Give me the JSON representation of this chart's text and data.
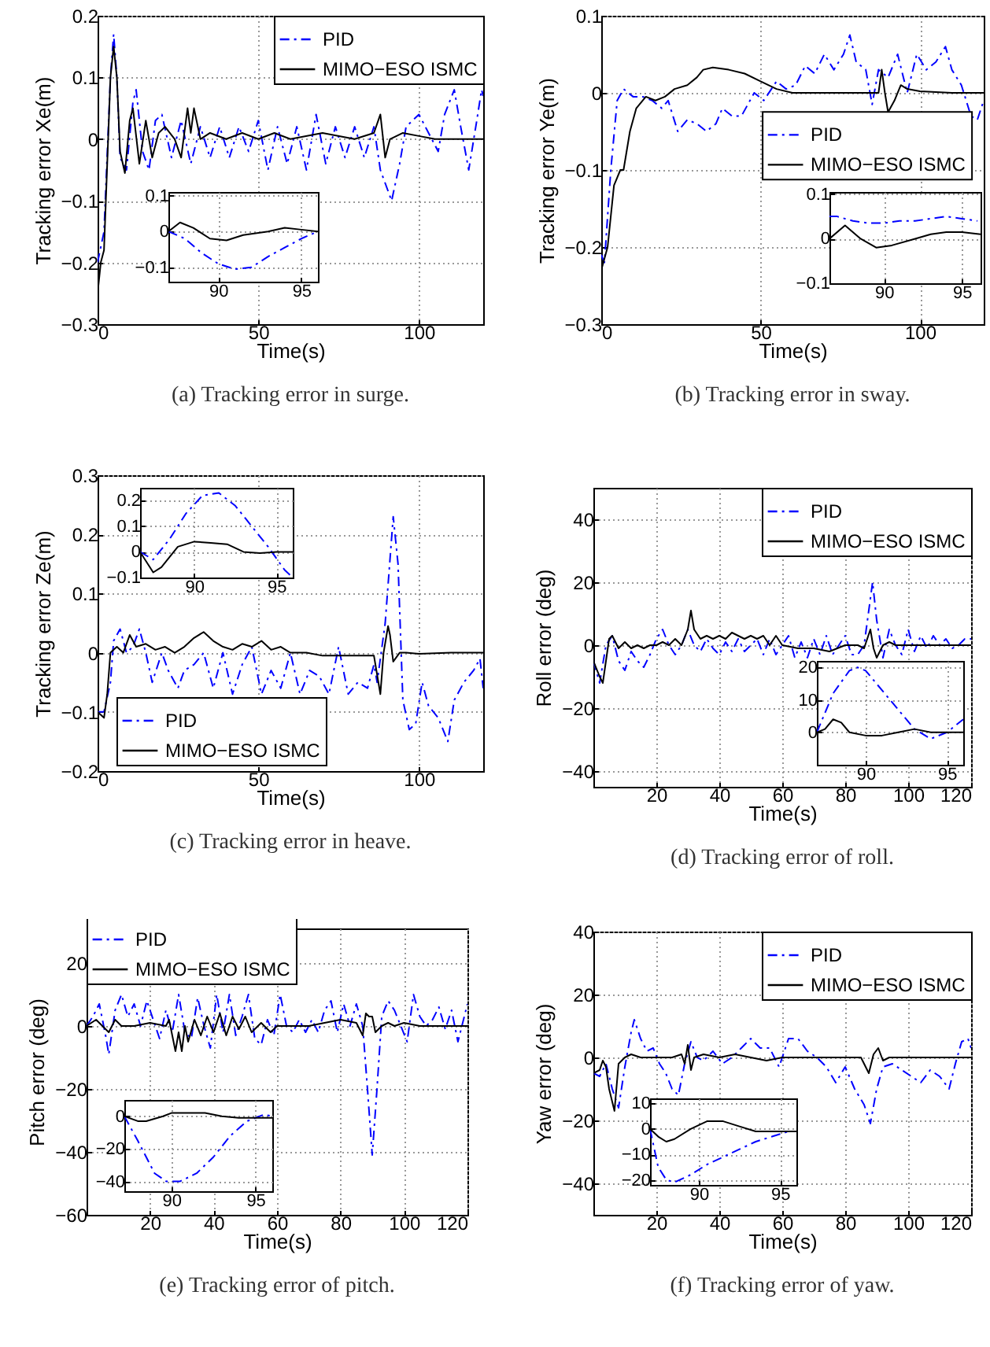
{
  "chart_data": [
    {
      "type": "line",
      "title": "(a) Tracking error in surge.",
      "xlabel": "Time(s)",
      "ylabel": "Tracking error  Xe(m)",
      "xlim": [
        0,
        120
      ],
      "ylim": [
        -0.3,
        0.2
      ],
      "xticks": [
        0,
        50,
        100
      ],
      "yticks": [
        -0.3,
        -0.2,
        -0.1,
        0,
        0.1,
        0.2
      ],
      "grid": true,
      "legend": "top right",
      "series": [
        {
          "name": "PID",
          "color": "#0000ff",
          "line_style": "dashed",
          "x": [
            0,
            2,
            4,
            5,
            6,
            7,
            9,
            11,
            12,
            14,
            16,
            18,
            20,
            23,
            26,
            29,
            32,
            35,
            38,
            41,
            44,
            47,
            50,
            53,
            56,
            59,
            62,
            65,
            68,
            71,
            74,
            77,
            80,
            83,
            86,
            88,
            91.5,
            94,
            96,
            100,
            103,
            106,
            108,
            111,
            113,
            115.5,
            118,
            119.5,
            120
          ],
          "values": [
            -0.2,
            -0.15,
            0.1,
            0.17,
            0.1,
            -0.03,
            -0.05,
            0.06,
            0.08,
            -0.02,
            -0.05,
            0.03,
            0.04,
            -0.03,
            0.03,
            -0.04,
            0.02,
            -0.03,
            0.02,
            -0.03,
            0.02,
            -0.02,
            0.03,
            -0.05,
            0.02,
            -0.04,
            0.02,
            -0.05,
            0.04,
            -0.04,
            0.02,
            -0.03,
            0.02,
            -0.03,
            0.02,
            -0.05,
            -0.1,
            -0.04,
            0.02,
            0.04,
            0.01,
            -0.02,
            0.04,
            0.08,
            0.02,
            -0.05,
            0.03,
            0.08,
            0.07
          ]
        },
        {
          "name": "MIMO−ESO ISMC",
          "color": "#000000",
          "line_style": "solid",
          "x": [
            0,
            1,
            2,
            4,
            5,
            6,
            7,
            8.5,
            10,
            11,
            13,
            15,
            17,
            19,
            21,
            24,
            26,
            28,
            29,
            30,
            32,
            35,
            40,
            45,
            50,
            55,
            60,
            70,
            80,
            86,
            88,
            89.5,
            91,
            95,
            100,
            105,
            120
          ],
          "values": [
            -0.25,
            -0.2,
            -0.18,
            0.1,
            0.15,
            0.1,
            -0.02,
            -0.055,
            0.03,
            0.05,
            -0.04,
            0.03,
            -0.03,
            0.01,
            0.02,
            0,
            -0.03,
            0.05,
            0.01,
            0.05,
            0,
            0.01,
            0,
            0.01,
            0,
            0.01,
            0,
            0.01,
            0,
            0.01,
            0.04,
            -0.03,
            0,
            0.01,
            0.005,
            0,
            0
          ]
        }
      ]
    },
    {
      "type": "line",
      "xlim": [
        87,
        96
      ],
      "ylim": [
        -0.14,
        0.11
      ],
      "xticks": [
        90,
        95
      ],
      "yticks": [
        -0.1,
        0,
        0.1
      ],
      "grid": true,
      "series": [
        {
          "color": "#0000ff",
          "line_style": "dashed",
          "x": [
            87,
            88,
            89,
            90,
            91,
            92,
            93,
            94,
            95,
            96
          ],
          "values": [
            0,
            -0.02,
            -0.06,
            -0.09,
            -0.105,
            -0.1,
            -0.07,
            -0.045,
            -0.02,
            0
          ]
        },
        {
          "color": "#000000",
          "line_style": "solid",
          "x": [
            87,
            87.7,
            88.5,
            89.5,
            90.5,
            91.5,
            93,
            94,
            95,
            96
          ],
          "values": [
            0,
            0.025,
            0.01,
            -0.02,
            -0.025,
            -0.01,
            0,
            0.01,
            0.005,
            0
          ]
        }
      ]
    },
    {
      "type": "line",
      "title": "(b) Tracking error in sway.",
      "xlabel": "Time(s)",
      "ylabel": "Tracking error  Ye(m)",
      "xlim": [
        0,
        120
      ],
      "ylim": [
        -0.3,
        0.1
      ],
      "xticks": [
        0,
        50,
        100
      ],
      "yticks": [
        -0.3,
        -0.2,
        -0.1,
        0,
        0.1
      ],
      "grid": true,
      "legend": "right",
      "series": [
        {
          "name": "PID",
          "color": "#0000ff",
          "line_style": "dashed",
          "x": [
            0,
            1,
            3,
            5,
            7,
            10,
            13,
            16,
            19,
            21,
            24,
            27,
            30,
            33,
            36,
            38,
            41,
            44,
            48,
            51,
            55,
            58,
            61,
            64,
            67,
            70,
            73,
            76,
            78,
            80,
            83,
            85,
            87,
            90,
            93,
            96,
            99,
            102,
            105,
            108,
            110,
            113,
            116,
            118,
            120
          ],
          "values": [
            -0.21,
            -0.22,
            -0.1,
            -0.01,
            0.005,
            -0.005,
            -0.005,
            -0.01,
            -0.02,
            -0.01,
            -0.05,
            -0.035,
            -0.04,
            -0.05,
            -0.04,
            -0.02,
            -0.03,
            -0.03,
            0,
            -0.01,
            0.015,
            0.005,
            0.01,
            0.035,
            0.025,
            0.05,
            0.03,
            0.05,
            0.075,
            0.04,
            0.03,
            -0.015,
            0.03,
            0.02,
            0.05,
            0,
            0.05,
            0.03,
            0.04,
            0.06,
            0.03,
            0.01,
            -0.03,
            -0.035,
            -0.01
          ]
        },
        {
          "name": "MIMO−ESO ISMC",
          "color": "#000000",
          "line_style": "solid",
          "x": [
            0,
            2,
            4,
            5,
            6,
            7,
            9,
            11,
            14,
            17,
            20,
            23,
            27,
            30,
            32,
            35,
            40,
            45,
            50,
            55,
            60,
            70,
            80,
            87,
            88,
            89,
            90,
            92,
            94,
            96,
            100,
            110,
            120
          ],
          "values": [
            -0.23,
            -0.2,
            -0.12,
            -0.11,
            -0.1,
            -0.1,
            -0.05,
            -0.02,
            -0.005,
            -0.01,
            -0.005,
            0.005,
            0.01,
            0.02,
            0.03,
            0.033,
            0.03,
            0.025,
            0.015,
            0.005,
            0,
            0,
            0,
            0,
            0.03,
            0,
            -0.025,
            -0.01,
            0.01,
            0.005,
            0.002,
            0,
            0
          ]
        }
      ]
    },
    {
      "type": "line",
      "xlim": [
        86.5,
        96.2
      ],
      "ylim": [
        -0.1,
        0.105
      ],
      "xticks": [
        90,
        95
      ],
      "yticks": [
        -0.1,
        0,
        0.1
      ],
      "grid": true,
      "series": [
        {
          "color": "#0000ff",
          "line_style": "dashed",
          "x": [
            86.5,
            87,
            88,
            89,
            90,
            91,
            92,
            93,
            94,
            95,
            96
          ],
          "values": [
            0.05,
            0.05,
            0.04,
            0.035,
            0.035,
            0.04,
            0.04,
            0.045,
            0.05,
            0.045,
            0.04
          ]
        },
        {
          "color": "#000000",
          "line_style": "solid",
          "x": [
            86.5,
            87.5,
            88.5,
            89.5,
            90.5,
            92,
            93,
            94,
            95,
            96.2
          ],
          "values": [
            0,
            0.03,
            0,
            -0.02,
            -0.015,
            0,
            0.01,
            0.015,
            0.015,
            0.01
          ]
        }
      ]
    },
    {
      "type": "line",
      "title": "(c) Tracking error in heave.",
      "xlabel": "Time(s)",
      "ylabel": "Tracking error  Ze(m)",
      "xlim": [
        0,
        120
      ],
      "ylim": [
        -0.2,
        0.3
      ],
      "xticks": [
        0,
        50,
        100
      ],
      "yticks": [
        -0.2,
        -0.1,
        0,
        0.1,
        0.2,
        0.3
      ],
      "grid": true,
      "legend": "bottom left",
      "series": [
        {
          "name": "PID",
          "color": "#0000ff",
          "line_style": "dashed",
          "x": [
            0,
            2,
            4,
            5,
            7,
            9,
            11,
            13,
            15,
            17,
            20,
            22,
            25,
            27,
            30,
            33,
            36,
            39,
            42,
            45,
            48,
            51,
            54,
            57,
            60,
            63,
            66,
            69,
            72,
            75,
            78,
            81,
            84,
            86,
            87,
            89.5,
            92,
            93.5,
            95,
            97,
            99,
            101,
            103,
            106,
            109,
            111,
            114,
            117,
            119,
            120
          ],
          "values": [
            -0.1,
            -0.1,
            -0.05,
            0.02,
            0.04,
            0,
            0.01,
            0.04,
            0,
            -0.05,
            0,
            -0.03,
            -0.06,
            -0.03,
            -0.02,
            0,
            -0.06,
            0,
            -0.07,
            -0.02,
            0.01,
            -0.07,
            -0.03,
            -0.06,
            0,
            -0.07,
            -0.03,
            -0.04,
            -0.07,
            0.01,
            -0.07,
            -0.05,
            -0.06,
            -0.02,
            -0.05,
            0.05,
            0.23,
            0.15,
            -0.08,
            -0.13,
            -0.12,
            -0.05,
            -0.09,
            -0.11,
            -0.15,
            -0.08,
            -0.05,
            -0.03,
            -0.01,
            -0.06
          ]
        },
        {
          "name": "MIMO−ESO ISMC",
          "color": "#000000",
          "line_style": "solid",
          "x": [
            0,
            2,
            3,
            4,
            6,
            8,
            10,
            12,
            15,
            18,
            21,
            24,
            27,
            30,
            33,
            36,
            39,
            42,
            45,
            48,
            51,
            54,
            57,
            60,
            65,
            70,
            80,
            86,
            88,
            89,
            90.4,
            91,
            92,
            94,
            96,
            100,
            110,
            120
          ],
          "values": [
            -0.1,
            -0.11,
            -0.07,
            0,
            0.01,
            0,
            0.03,
            0.01,
            0.015,
            0.005,
            0.01,
            0,
            0.01,
            0.025,
            0.035,
            0.02,
            0.01,
            0.005,
            0.015,
            0.01,
            0.02,
            0.005,
            0.01,
            0,
            0,
            -0.005,
            -0.005,
            -0.005,
            -0.07,
            0,
            0.045,
            0.03,
            -0.015,
            0,
            0,
            -0.002,
            0,
            0
          ]
        }
      ]
    },
    {
      "type": "line",
      "xlim": [
        86.7,
        96
      ],
      "ylim": [
        -0.1,
        0.25
      ],
      "xticks": [
        90,
        95
      ],
      "yticks": [
        -0.1,
        0,
        0.1,
        0.2
      ],
      "grid": true,
      "series": [
        {
          "color": "#0000ff",
          "line_style": "dashed",
          "x": [
            86.7,
            87.5,
            88.5,
            89.5,
            90.5,
            91.5,
            92.5,
            93.5,
            94.5,
            95.5,
            96
          ],
          "values": [
            0,
            -0.03,
            0.05,
            0.15,
            0.22,
            0.23,
            0.18,
            0.1,
            0.02,
            -0.07,
            -0.1
          ]
        },
        {
          "color": "#000000",
          "line_style": "solid",
          "x": [
            86.7,
            87.5,
            88,
            89,
            90,
            91,
            92,
            93,
            94,
            95,
            96
          ],
          "values": [
            0,
            -0.08,
            -0.06,
            0.02,
            0.04,
            0.035,
            0.03,
            0,
            -0.005,
            0,
            0
          ]
        }
      ]
    },
    {
      "type": "line",
      "title": "(d) Tracking error of roll.",
      "xlabel": "Time(s)",
      "ylabel": "Roll error (deg)",
      "xlim": [
        0,
        120
      ],
      "ylim": [
        -45,
        50
      ],
      "xticks": [
        20,
        40,
        60,
        80,
        100,
        120
      ],
      "yticks": [
        -40,
        -20,
        0,
        20,
        40
      ],
      "grid": true,
      "legend": "top right",
      "series": [
        {
          "name": "PID",
          "color": "#0000ff",
          "line_style": "dashed",
          "x": [
            0,
            2,
            4,
            6,
            8,
            10,
            12,
            14,
            16,
            18,
            20,
            22,
            24,
            26,
            28,
            30,
            32,
            34,
            36,
            38,
            40,
            42,
            44,
            46,
            48,
            50,
            52,
            54,
            56,
            58,
            60,
            62,
            64,
            66,
            68,
            70,
            72,
            74,
            76,
            78,
            80,
            82,
            84,
            86,
            88.7,
            90,
            92,
            94,
            96,
            98,
            100,
            102,
            104,
            106,
            108,
            110,
            112,
            114,
            116,
            118,
            120
          ],
          "values": [
            -5,
            -12,
            0,
            3,
            -5,
            -8,
            -2,
            -5,
            -7,
            -3,
            2,
            5,
            0,
            -3,
            0,
            5,
            0,
            -2,
            2,
            -1,
            -3,
            1,
            -2,
            2,
            -2,
            0,
            2,
            -3,
            2,
            -3,
            0,
            3,
            -4,
            1,
            -4,
            2,
            -3,
            3,
            -3,
            0,
            3,
            -3,
            -3,
            0,
            20,
            8,
            -4,
            5,
            0,
            -3,
            5,
            -2,
            3,
            -1,
            3,
            0,
            2,
            -1,
            0,
            2,
            2
          ]
        },
        {
          "name": "MIMO−ESO ISMC",
          "color": "#000000",
          "line_style": "solid",
          "x": [
            0,
            2,
            3,
            4,
            5,
            6,
            8,
            10,
            12,
            14,
            16,
            18,
            20,
            22,
            24,
            26,
            28,
            30,
            31,
            32,
            34,
            36,
            38,
            40,
            42,
            44,
            46,
            48,
            50,
            52,
            54,
            56,
            58,
            60,
            65,
            70,
            75,
            80,
            84,
            86,
            88,
            89,
            90,
            92,
            94,
            96,
            100,
            110,
            120
          ],
          "values": [
            -5,
            -10,
            -12,
            -5,
            2,
            3,
            -1,
            1,
            -1,
            0,
            -1,
            0,
            0,
            1,
            0,
            2,
            0,
            5,
            11,
            5,
            2,
            3,
            2,
            3,
            2,
            4,
            3,
            2,
            3,
            2,
            3,
            0,
            3,
            0,
            -1,
            -1,
            -2,
            0,
            0,
            -1,
            5,
            -1,
            -4,
            0,
            1,
            0,
            0,
            0,
            0
          ]
        }
      ]
    },
    {
      "type": "line",
      "xlim": [
        87,
        96
      ],
      "ylim": [
        -10,
        22
      ],
      "xticks": [
        90,
        95
      ],
      "yticks": [
        0,
        10,
        20
      ],
      "grid": true,
      "series": [
        {
          "color": "#0000ff",
          "line_style": "dashed",
          "x": [
            87,
            88,
            89,
            89.5,
            90,
            91,
            92,
            93,
            94,
            95,
            96
          ],
          "values": [
            0,
            12,
            19,
            20,
            19,
            13,
            7,
            1,
            -2,
            0,
            4
          ]
        },
        {
          "color": "#000000",
          "line_style": "solid",
          "x": [
            87,
            87.5,
            88,
            88.5,
            89,
            90,
            91,
            92,
            93,
            94,
            95,
            96
          ],
          "values": [
            0,
            1,
            4,
            3,
            0,
            -1,
            -1,
            0,
            1,
            0,
            0,
            0
          ]
        }
      ]
    },
    {
      "type": "line",
      "title": "(e) Tracking error of pitch.",
      "xlabel": "Time(s)",
      "ylabel": "Pitch error (deg)",
      "xlim": [
        0,
        120
      ],
      "ylim": [
        -60,
        31
      ],
      "xticks": [
        20,
        40,
        60,
        80,
        100,
        120
      ],
      "yticks": [
        -60,
        -40,
        -20,
        0,
        20
      ],
      "grid": true,
      "legend": "top left",
      "series": [
        {
          "name": "PID",
          "color": "#0000ff",
          "line_style": "dashed",
          "x": [
            0,
            2,
            4,
            6,
            7,
            9,
            11,
            13,
            15,
            17,
            19,
            21,
            23,
            25,
            27,
            29,
            31,
            33,
            35,
            37,
            39,
            41,
            43,
            45,
            47,
            49,
            51,
            53,
            55,
            57,
            59,
            61,
            63,
            65,
            67,
            69,
            71,
            73,
            75,
            77,
            79,
            81,
            83,
            85,
            87,
            88.5,
            90,
            91.5,
            93,
            95,
            97,
            99,
            101,
            103,
            105,
            107,
            109,
            111,
            113,
            115,
            117,
            120
          ],
          "values": [
            0,
            3,
            7,
            -3,
            -9,
            5,
            10,
            3,
            7,
            0,
            8,
            2,
            -4,
            5,
            -2,
            10,
            -2,
            -4,
            9,
            0,
            -7,
            10,
            -2,
            10,
            -3,
            3,
            10,
            -4,
            -6,
            2,
            -3,
            10,
            0,
            -2,
            2,
            -2,
            2,
            -2,
            5,
            8,
            -2,
            7,
            0,
            7,
            0,
            -20,
            -41,
            -20,
            3,
            8,
            5,
            0,
            -5,
            10,
            3,
            0,
            2,
            6,
            -1,
            5,
            -5,
            7
          ]
        },
        {
          "name": "MIMO−ESO ISMC",
          "color": "#000000",
          "line_style": "solid",
          "x": [
            0,
            3,
            5,
            7,
            9,
            11,
            15,
            20,
            25,
            26,
            27,
            28,
            29,
            30,
            31,
            32,
            34,
            36,
            38,
            40,
            42,
            44,
            46,
            48,
            50,
            52,
            55,
            58,
            60,
            65,
            70,
            75,
            80,
            85,
            87,
            88,
            89,
            90,
            91,
            93,
            95,
            97,
            100,
            105,
            110,
            120
          ],
          "values": [
            0,
            2,
            0,
            -2,
            2,
            0,
            0,
            1,
            0,
            2,
            -3,
            -8,
            -2,
            -8,
            0,
            -5,
            2,
            -3,
            3,
            -2,
            4,
            -3,
            3,
            -1,
            3,
            -2,
            1,
            -2,
            0,
            0,
            0,
            1,
            2,
            1,
            -3,
            4,
            3,
            3,
            -2,
            0,
            1,
            0,
            1,
            0,
            0,
            0
          ]
        }
      ]
    },
    {
      "type": "line",
      "xlim": [
        87.2,
        96
      ],
      "ylim": [
        -46,
        10
      ],
      "xticks": [
        90,
        95
      ],
      "yticks": [
        -40,
        -20,
        0
      ],
      "grid": true,
      "series": [
        {
          "color": "#0000ff",
          "line_style": "dashed",
          "x": [
            87.2,
            88,
            89,
            89.7,
            90.5,
            91.5,
            92.5,
            93.5,
            94.5,
            95.5,
            96
          ],
          "values": [
            0,
            -15,
            -35,
            -40,
            -40,
            -35,
            -25,
            -12,
            -3,
            1,
            0
          ]
        },
        {
          "color": "#000000",
          "line_style": "solid",
          "x": [
            87.2,
            88,
            88.5,
            89.5,
            90,
            91,
            92,
            93,
            94,
            95,
            96
          ],
          "values": [
            0,
            -3,
            -3,
            0,
            2,
            2,
            2,
            0,
            -1,
            -1,
            -1
          ]
        }
      ]
    },
    {
      "type": "line",
      "title": "(f) Tracking error of yaw.",
      "xlabel": "Time(s)",
      "ylabel": "Yaw error (deg)",
      "xlim": [
        0,
        120
      ],
      "ylim": [
        -50,
        40
      ],
      "xticks": [
        20,
        40,
        60,
        80,
        100,
        120
      ],
      "yticks": [
        -40,
        -20,
        0,
        20,
        40
      ],
      "grid": true,
      "legend": "top right",
      "series": [
        {
          "name": "PID",
          "color": "#0000ff",
          "line_style": "dashed",
          "x": [
            0,
            2,
            4,
            6,
            8,
            10,
            12,
            13,
            15,
            17,
            19,
            21,
            23,
            25,
            27,
            29,
            31,
            33,
            35,
            38,
            41,
            44,
            47,
            50,
            53,
            56,
            59,
            62,
            65,
            68,
            71,
            74,
            77,
            80,
            83,
            86,
            88,
            90,
            92,
            95,
            98,
            101,
            104,
            107,
            110,
            113,
            115,
            117,
            119,
            120
          ],
          "values": [
            -5,
            -6,
            -2,
            -10,
            -16,
            -3,
            8,
            12,
            6,
            2,
            3,
            -2,
            -5,
            -10,
            -12,
            -2,
            5,
            0,
            -1,
            2,
            -2,
            0,
            3,
            6,
            3,
            3,
            -3,
            6,
            6,
            2,
            0,
            -3,
            -8,
            -3,
            -10,
            -15,
            -21,
            -10,
            -3,
            -2,
            -4,
            -6,
            -8,
            -4,
            -6,
            -10,
            -2,
            5,
            6,
            3
          ]
        },
        {
          "name": "MIMO−ESO ISMC",
          "color": "#000000",
          "line_style": "solid",
          "x": [
            0,
            2,
            3,
            4,
            5,
            6.7,
            8,
            10,
            12,
            15,
            20,
            25,
            28,
            29,
            30,
            31,
            32,
            35,
            40,
            45,
            50,
            55,
            60,
            70,
            80,
            85,
            87.5,
            89,
            90.5,
            92,
            94,
            100,
            110,
            120
          ],
          "values": [
            -5,
            -4,
            -1,
            -3,
            -10,
            -17,
            -2,
            0,
            1,
            0,
            0,
            0,
            1,
            -2,
            4,
            -4,
            0,
            1,
            0,
            1,
            0,
            -1,
            0,
            0,
            0,
            0,
            -5,
            1,
            3,
            -1,
            0,
            0,
            0,
            0
          ]
        }
      ]
    },
    {
      "type": "line",
      "xlim": [
        87,
        96
      ],
      "ylim": [
        -22,
        12
      ],
      "xticks": [
        90,
        95
      ],
      "yticks": [
        -20,
        -10,
        0,
        10
      ],
      "grid": true,
      "series": [
        {
          "color": "#0000ff",
          "line_style": "dashed",
          "x": [
            87,
            87.5,
            88,
            88.5,
            89.5,
            90.5,
            91.5,
            92.5,
            93.5,
            94.5,
            95.5,
            96
          ],
          "values": [
            0,
            -15,
            -20,
            -21,
            -18,
            -14,
            -11,
            -8,
            -5,
            -3,
            -1,
            -1
          ]
        },
        {
          "color": "#000000",
          "line_style": "solid",
          "x": [
            87,
            87.5,
            88,
            88.5,
            89.5,
            90.5,
            91.5,
            92.5,
            93.5,
            94.5,
            95.5,
            96
          ],
          "values": [
            0,
            -3,
            -5,
            -4,
            0,
            3,
            3,
            1,
            -1,
            -1,
            -1,
            -1
          ]
        }
      ]
    }
  ]
}
